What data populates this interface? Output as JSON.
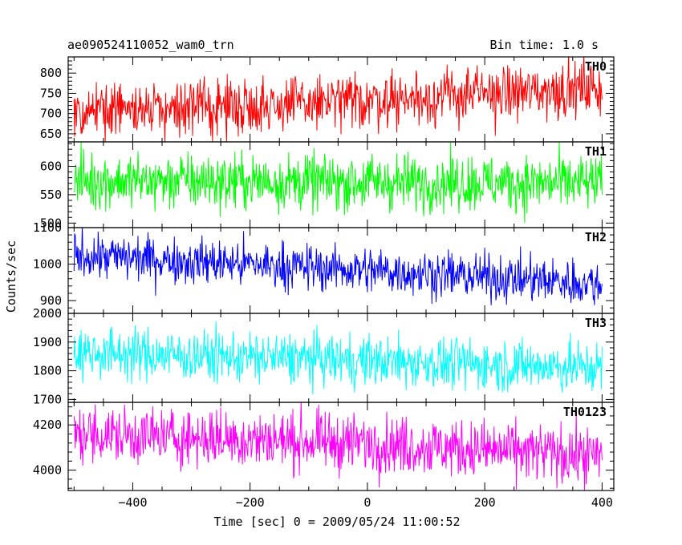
{
  "header": {
    "title": "ae090524110052_wam0_trn",
    "bin_time": "Bin time: 1.0 s"
  },
  "chart_data": {
    "type": "line",
    "xlabel": "Time [sec] 0 = 2009/05/24 11:00:52",
    "ylabel": "Counts/sec",
    "xlim": [
      -510,
      420
    ],
    "x_ticks": [
      -400,
      -200,
      0,
      200,
      400
    ],
    "x_start": -500,
    "x_end": 400,
    "bin": 1.0,
    "panels": [
      {
        "name": "TH0",
        "color": "#ff0000",
        "ylim": [
          630,
          840
        ],
        "y_ticks": [
          650,
          700,
          750,
          800
        ],
        "trend": [
          [
            -500,
            705
          ],
          [
            -300,
            715
          ],
          [
            -100,
            725
          ],
          [
            100,
            740
          ],
          [
            230,
            750
          ],
          [
            400,
            765
          ]
        ],
        "noise": 35
      },
      {
        "name": "TH1",
        "color": "#00ff00",
        "ylim": [
          492,
          643
        ],
        "y_ticks": [
          500,
          550,
          600
        ],
        "trend": [
          [
            -500,
            575
          ],
          [
            400,
            570
          ]
        ],
        "noise": 25
      },
      {
        "name": "TH2",
        "color": "#0000ff",
        "ylim": [
          865,
          1100
        ],
        "y_ticks": [
          900,
          1000,
          1100
        ],
        "trend": [
          [
            -500,
            1025
          ],
          [
            -200,
            1000
          ],
          [
            100,
            975
          ],
          [
            400,
            945
          ]
        ],
        "noise": 32
      },
      {
        "name": "TH3",
        "color": "#00ffff",
        "ylim": [
          1690,
          2000
        ],
        "y_ticks": [
          1700,
          1800,
          1900,
          2000
        ],
        "trend": [
          [
            -500,
            1865
          ],
          [
            400,
            1810
          ]
        ],
        "noise": 45
      },
      {
        "name": "TH0123",
        "color": "#ff00ff",
        "ylim": [
          3910,
          4300
        ],
        "y_ticks": [
          4000,
          4200
        ],
        "trend": [
          [
            -500,
            4160
          ],
          [
            0,
            4120
          ],
          [
            400,
            4060
          ]
        ],
        "noise": 65
      }
    ]
  }
}
